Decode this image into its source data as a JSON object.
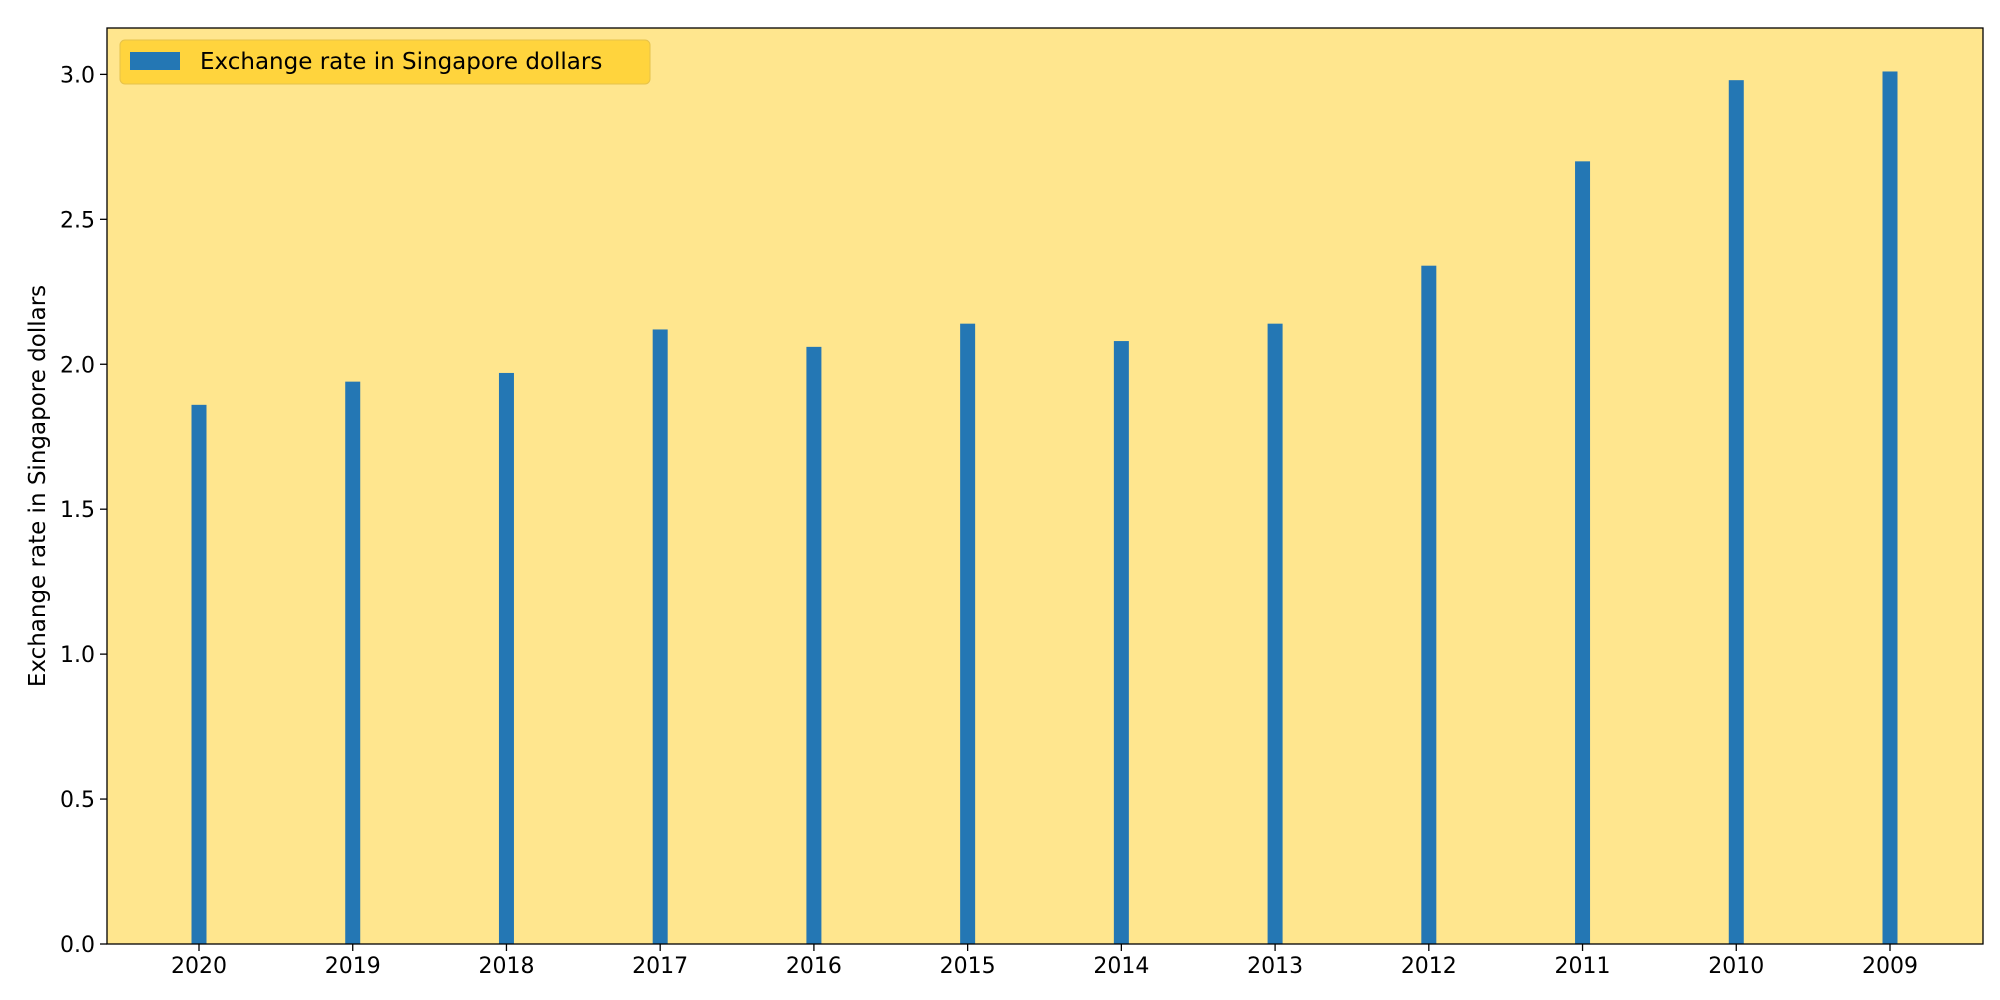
{
  "chart_data": {
    "type": "bar",
    "categories": [
      "2020",
      "2019",
      "2018",
      "2017",
      "2016",
      "2015",
      "2014",
      "2013",
      "2012",
      "2011",
      "2010",
      "2009"
    ],
    "series": [
      {
        "name": "Exchange rate in Singapore dollars",
        "values": [
          1.86,
          1.94,
          1.97,
          2.12,
          2.06,
          2.14,
          2.08,
          2.14,
          2.34,
          2.7,
          2.98,
          3.01
        ]
      }
    ],
    "title": "",
    "xlabel": "",
    "ylabel": "Exchange rate in Singapore dollars",
    "ylim": [
      0,
      3.16
    ],
    "yticks": [
      "0.0",
      "0.5",
      "1.0",
      "1.5",
      "2.0",
      "2.5",
      "3.0"
    ],
    "grid": false,
    "legend_position": "upper-left",
    "colors": {
      "bar": "#2477b4",
      "plot_background": "#ffe68e",
      "legend_background": "#ffd43d",
      "axis": "#000000"
    }
  }
}
